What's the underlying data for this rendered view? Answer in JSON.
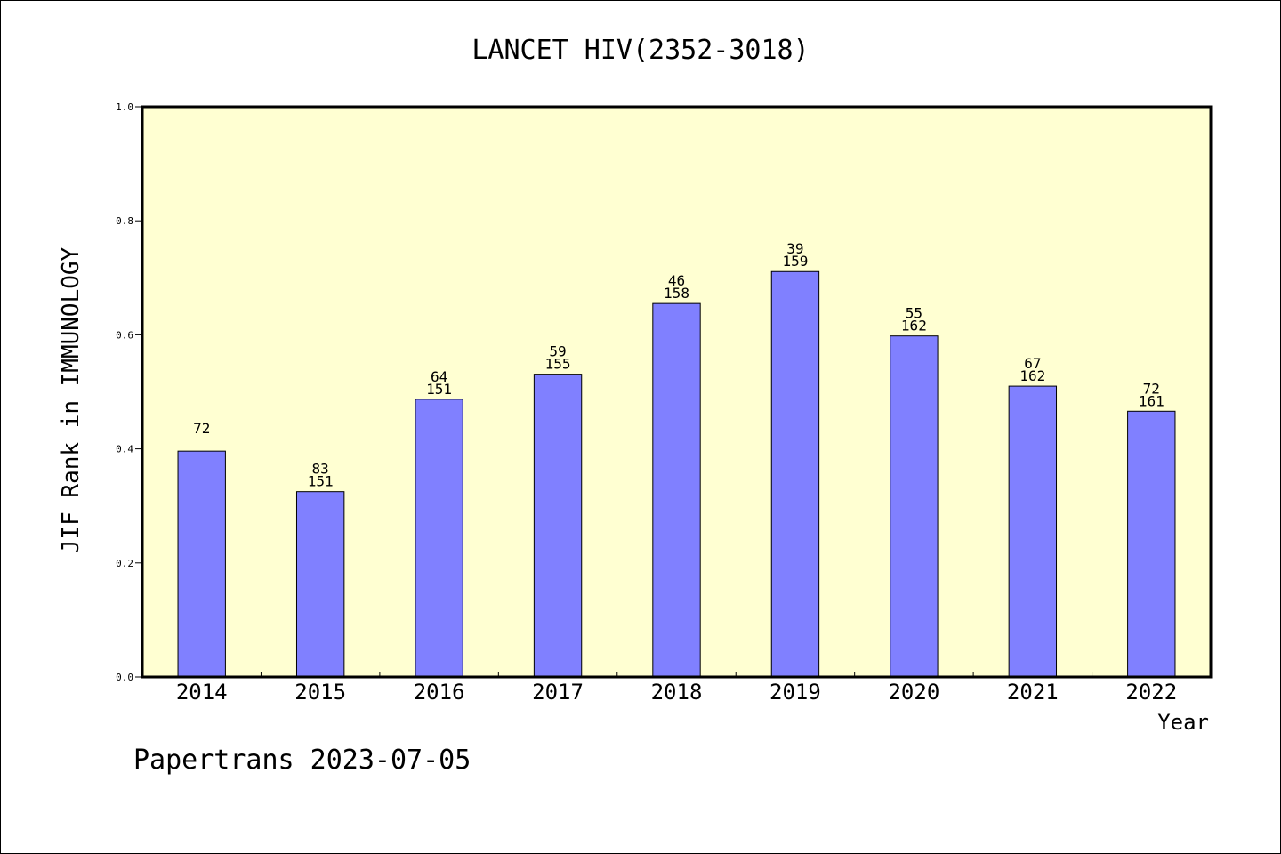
{
  "chart_data": {
    "type": "bar",
    "title": "LANCET HIV(2352-3018)",
    "xlabel": "Year",
    "ylabel": "JIF Rank in IMMUNOLOGY",
    "ylim": [
      0,
      1.0
    ],
    "yticks": [
      "0.0",
      "0.2",
      "0.4",
      "0.6",
      "0.8",
      "1.0"
    ],
    "grid": false,
    "categories": [
      "2014",
      "2015",
      "2016",
      "2017",
      "2018",
      "2019",
      "2020",
      "2021",
      "2022"
    ],
    "values": [
      0.396,
      0.325,
      0.487,
      0.531,
      0.655,
      0.711,
      0.598,
      0.51,
      0.466
    ],
    "rank_labels": [
      "72",
      "83",
      "64",
      "59",
      "46",
      "39",
      "55",
      "67",
      "72"
    ],
    "total_labels": [
      "",
      "151",
      "151",
      "155",
      "158",
      "159",
      "162",
      "162",
      "161"
    ]
  },
  "colors": {
    "plot_background": "#ffffd2",
    "bar_fill": "#8080ff",
    "axis": "#000000"
  },
  "footer": "Papertrans 2023-07-05"
}
